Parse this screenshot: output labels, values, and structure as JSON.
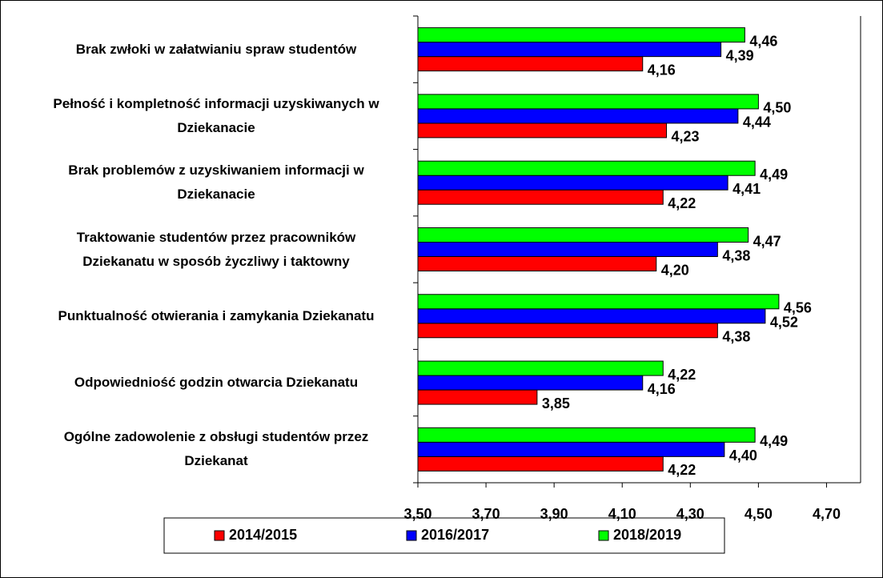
{
  "chart_data": {
    "type": "hbar",
    "categories": [
      "Brak zwłoki w załatwianiu spraw studentów",
      "Pełność i kompletność informacji uzyskiwanych w\nDziekanacie",
      "Brak problemów z uzyskiwaniem informacji w\nDziekanacie",
      "Traktowanie studentów przez pracowników\nDziekanatu  w sposób życzliwy i taktowny",
      "Punktualność otwierania i zamykania Dziekanatu",
      "Odpowiedniość godzin otwarcia Dziekanatu",
      "Ogólne zadowolenie z obsługi studentów przez\nDziekanat"
    ],
    "series": [
      {
        "name": "2014/2015",
        "color": "#ff0000",
        "values": [
          4.16,
          4.23,
          4.22,
          4.2,
          4.38,
          3.85,
          4.22
        ],
        "value_labels": [
          "4,16",
          "4,23",
          "4,22",
          "4,20",
          "4,38",
          "3,85",
          "4,22"
        ]
      },
      {
        "name": "2016/2017",
        "color": "#0000ff",
        "values": [
          4.39,
          4.44,
          4.41,
          4.38,
          4.52,
          4.16,
          4.4
        ],
        "value_labels": [
          "4,39",
          "4,44",
          "4,41",
          "4,38",
          "4,52",
          "4,16",
          "4,40"
        ]
      },
      {
        "name": "2018/2019",
        "color": "#00ff00",
        "values": [
          4.46,
          4.5,
          4.49,
          4.47,
          4.56,
          4.22,
          4.49
        ],
        "value_labels": [
          "4,46",
          "4,50",
          "4,49",
          "4,47",
          "4,56",
          "4,22",
          "4,49"
        ]
      }
    ],
    "xlim": [
      3.5,
      4.8
    ],
    "xticks": [
      {
        "value": 3.5,
        "label": "3,50"
      },
      {
        "value": 3.7,
        "label": "3,70"
      },
      {
        "value": 3.9,
        "label": "3,90"
      },
      {
        "value": 4.1,
        "label": "4,10"
      },
      {
        "value": 4.3,
        "label": "4,30"
      },
      {
        "value": 4.5,
        "label": "4,50"
      },
      {
        "value": 4.7,
        "label": "4,70"
      }
    ],
    "legend": "bottom"
  }
}
